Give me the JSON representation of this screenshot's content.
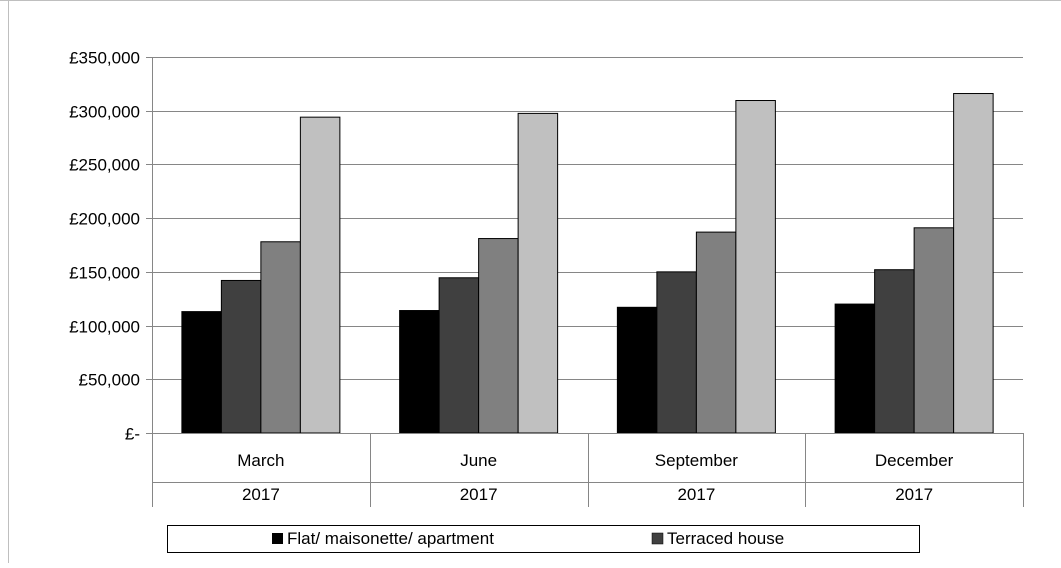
{
  "chart_data": {
    "type": "bar",
    "title": "",
    "xlabel": "",
    "ylabel": "",
    "categories": [
      "March",
      "June",
      "September",
      "December"
    ],
    "category_years": [
      "2017",
      "2017",
      "2017",
      "2017"
    ],
    "y_ticks": [
      "£-",
      "£50,000",
      "£100,000",
      "£150,000",
      "£200,000",
      "£250,000",
      "£300,000",
      "£350,000"
    ],
    "ylim": [
      0,
      350000
    ],
    "grid": true,
    "legend_position": "bottom",
    "series": [
      {
        "name": "Flat/ maisonette/ apartment",
        "color": "#000000",
        "values": [
          113000,
          114000,
          117000,
          120000
        ]
      },
      {
        "name": "Terraced house",
        "color": "#404040",
        "values": [
          142000,
          144500,
          150000,
          152000
        ]
      },
      {
        "color": "#808080",
        "values": [
          178000,
          181000,
          187000,
          191000
        ]
      },
      {
        "color": "#c0c0c0",
        "values": [
          294000,
          297500,
          309500,
          316000
        ]
      }
    ]
  }
}
